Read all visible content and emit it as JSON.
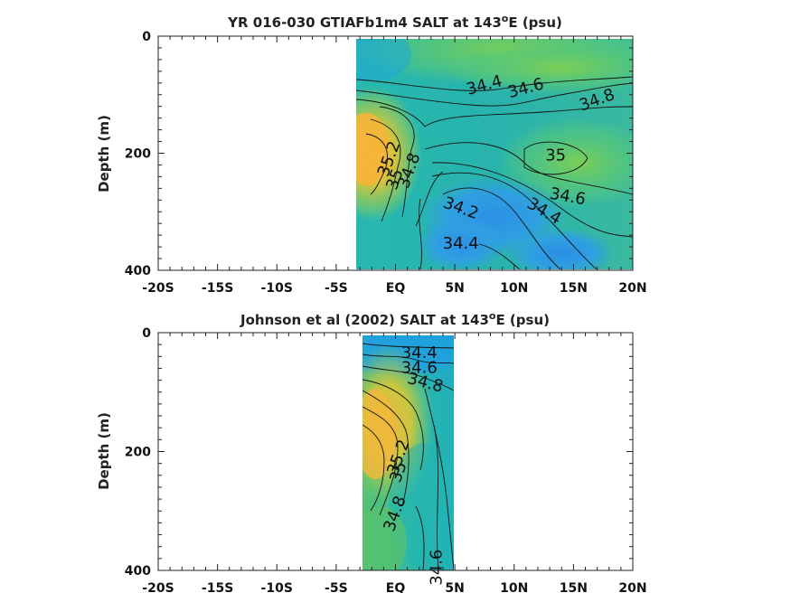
{
  "chart_data": [
    {
      "type": "heatmap",
      "title": "YR 016-030 GTIAFb1m4 SALT at 143",
      "title_sup": "o",
      "title_end": "E (psu)",
      "ylabel": "Depth (m)",
      "xlim": [
        -20,
        20
      ],
      "ylim": [
        0,
        400
      ],
      "y_reversed": true,
      "x_ticks": [
        -20,
        -15,
        -10,
        -5,
        0,
        5,
        10,
        15,
        20
      ],
      "x_tick_labels": [
        "-20S",
        "-15S",
        "-10S",
        "-5S",
        "EQ",
        "5N",
        "10N",
        "15N",
        "20N"
      ],
      "y_ticks": [
        0,
        200,
        400
      ],
      "y_tick_labels": [
        "0",
        "200",
        "400"
      ],
      "data_xrange": [
        -3.5,
        20
      ],
      "data_yrange": [
        5,
        400
      ],
      "contour_labels": [
        {
          "text": "34.4",
          "x": 7.5,
          "y": 85,
          "angle": -15
        },
        {
          "text": "34.6",
          "x": 11,
          "y": 90,
          "angle": -15
        },
        {
          "text": "34.8",
          "x": 17,
          "y": 110,
          "angle": -20
        },
        {
          "text": "35",
          "x": 13.5,
          "y": 205,
          "angle": 0
        },
        {
          "text": "35.2",
          "x": -0.5,
          "y": 210,
          "angle": -70
        },
        {
          "text": "35",
          "x": 0,
          "y": 245,
          "angle": -70
        },
        {
          "text": "34.8",
          "x": 1.2,
          "y": 230,
          "angle": -70
        },
        {
          "text": "34.6",
          "x": 14.5,
          "y": 275,
          "angle": 10
        },
        {
          "text": "34.4",
          "x": 12.5,
          "y": 300,
          "angle": 30
        },
        {
          "text": "34.2",
          "x": 5.5,
          "y": 295,
          "angle": 20
        },
        {
          "text": "34.4",
          "x": 5.5,
          "y": 355,
          "angle": 0
        }
      ]
    },
    {
      "type": "heatmap",
      "title": "Johnson et al (2002) SALT at 143",
      "title_sup": "o",
      "title_end": "E (psu)",
      "ylabel": "Depth (m)",
      "xlim": [
        -20,
        20
      ],
      "ylim": [
        0,
        400
      ],
      "y_reversed": true,
      "x_ticks": [
        -20,
        -15,
        -10,
        -5,
        0,
        5,
        10,
        15,
        20
      ],
      "x_tick_labels": [
        "-20S",
        "-15S",
        "-10S",
        "-5S",
        "EQ",
        "5N",
        "10N",
        "15N",
        "20N"
      ],
      "y_ticks": [
        0,
        200,
        400
      ],
      "y_tick_labels": [
        "0",
        "200",
        "400"
      ],
      "data_xrange": [
        -3,
        5
      ],
      "data_yrange": [
        5,
        400
      ],
      "contour_labels": [
        {
          "text": "34.4",
          "x": 2,
          "y": 35,
          "angle": 0
        },
        {
          "text": "34.6",
          "x": 2,
          "y": 60,
          "angle": 0
        },
        {
          "text": "34.8",
          "x": 2.5,
          "y": 85,
          "angle": 15
        },
        {
          "text": "35.2",
          "x": 0.3,
          "y": 210,
          "angle": -70
        },
        {
          "text": "35",
          "x": 0.3,
          "y": 235,
          "angle": -70
        },
        {
          "text": "34.8",
          "x": 0,
          "y": 305,
          "angle": -70
        },
        {
          "text": "34.6",
          "x": 3.5,
          "y": 395,
          "angle": -90
        }
      ]
    }
  ]
}
